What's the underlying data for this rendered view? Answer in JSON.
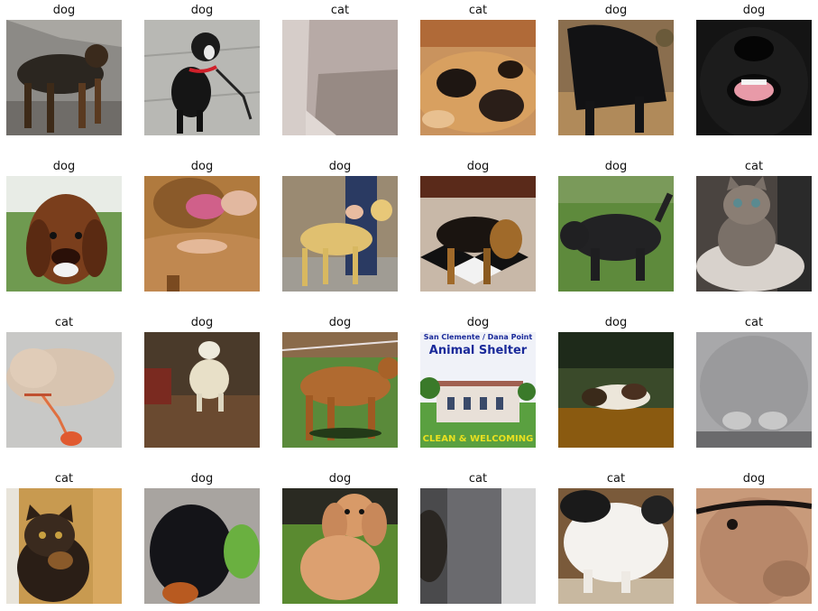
{
  "grid": [
    {
      "label": "dog",
      "subject": "rottweiler-mix-dog"
    },
    {
      "label": "dog",
      "subject": "boston-terrier-dog"
    },
    {
      "label": "cat",
      "subject": "cat-closeup-pale"
    },
    {
      "label": "cat",
      "subject": "calico-cat-fur"
    },
    {
      "label": "dog",
      "subject": "black-dog-leaves"
    },
    {
      "label": "dog",
      "subject": "black-lab-face"
    },
    {
      "label": "dog",
      "subject": "brown-hound-face"
    },
    {
      "label": "dog",
      "subject": "pitbull-belly"
    },
    {
      "label": "dog",
      "subject": "tan-dog-held"
    },
    {
      "label": "dog",
      "subject": "shepherd-on-tiles"
    },
    {
      "label": "dog",
      "subject": "black-dog-grass"
    },
    {
      "label": "cat",
      "subject": "tabby-kitten"
    },
    {
      "label": "cat",
      "subject": "cream-cat-lying"
    },
    {
      "label": "dog",
      "subject": "white-terrier-indoors"
    },
    {
      "label": "dog",
      "subject": "brown-dog-grass"
    },
    {
      "label": "dog",
      "subject": "animal-shelter-sign"
    },
    {
      "label": "dog",
      "subject": "dog-lying-porch"
    },
    {
      "label": "cat",
      "subject": "gray-cat-paws"
    },
    {
      "label": "cat",
      "subject": "tortoiseshell-cat"
    },
    {
      "label": "dog",
      "subject": "black-dog-toy"
    },
    {
      "label": "dog",
      "subject": "cocker-spaniel"
    },
    {
      "label": "cat",
      "subject": "dark-blur-cat"
    },
    {
      "label": "cat",
      "subject": "white-cat-body"
    },
    {
      "label": "dog",
      "subject": "pug-collar-closeup"
    }
  ],
  "sign": {
    "line1": "San Clemente / Dana Point",
    "line2": "Animal Shelter",
    "line3": "CLEAN & WELCOMING"
  }
}
